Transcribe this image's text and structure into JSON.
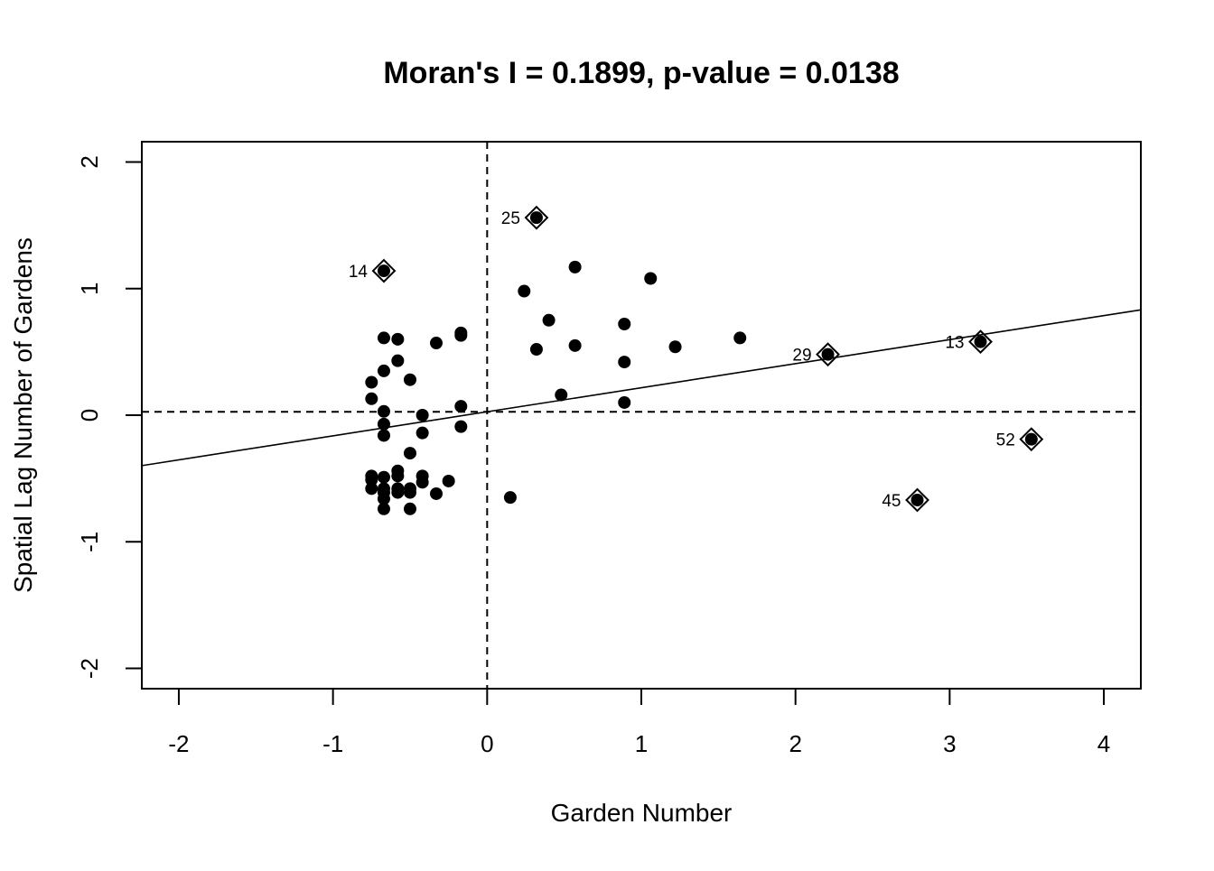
{
  "chart_data": {
    "type": "scatter",
    "title": "Moran's I = 0.1899, p-value = 0.0138",
    "xlabel": "Garden Number",
    "ylabel": "Spatial Lag Number of Gardens",
    "xlim": [
      -2.24,
      4.24
    ],
    "ylim": [
      -2.16,
      2.16
    ],
    "xticks": [
      -2,
      -1,
      0,
      1,
      2,
      3,
      4
    ],
    "yticks": [
      -2,
      -1,
      0,
      1,
      2
    ],
    "mean_x": 0,
    "mean_y": 0.027,
    "regression": {
      "intercept": 0.027,
      "slope": 0.1899
    },
    "grid": false,
    "legend": "none",
    "points": [
      {
        "x": -0.75,
        "y": 0.26
      },
      {
        "x": -0.75,
        "y": 0.13
      },
      {
        "x": -0.67,
        "y": 0.61
      },
      {
        "x": -0.58,
        "y": 0.6
      },
      {
        "x": -0.67,
        "y": 0.35
      },
      {
        "x": -0.58,
        "y": 0.43
      },
      {
        "x": -0.5,
        "y": 0.28
      },
      {
        "x": -0.33,
        "y": 0.57
      },
      {
        "x": -0.17,
        "y": 0.63
      },
      {
        "x": -0.17,
        "y": 0.65
      },
      {
        "x": -0.67,
        "y": 0.03
      },
      {
        "x": -0.67,
        "y": -0.07
      },
      {
        "x": -0.67,
        "y": -0.16
      },
      {
        "x": -0.42,
        "y": 0.0
      },
      {
        "x": -0.42,
        "y": -0.14
      },
      {
        "x": -0.17,
        "y": 0.07
      },
      {
        "x": -0.17,
        "y": -0.09
      },
      {
        "x": -0.5,
        "y": -0.3
      },
      {
        "x": -0.75,
        "y": -0.48
      },
      {
        "x": -0.75,
        "y": -0.51
      },
      {
        "x": -0.75,
        "y": -0.58
      },
      {
        "x": -0.67,
        "y": -0.49
      },
      {
        "x": -0.67,
        "y": -0.58
      },
      {
        "x": -0.67,
        "y": -0.61
      },
      {
        "x": -0.67,
        "y": -0.66
      },
      {
        "x": -0.67,
        "y": -0.74
      },
      {
        "x": -0.58,
        "y": -0.44
      },
      {
        "x": -0.58,
        "y": -0.48
      },
      {
        "x": -0.58,
        "y": -0.58
      },
      {
        "x": -0.58,
        "y": -0.61
      },
      {
        "x": -0.5,
        "y": -0.58
      },
      {
        "x": -0.5,
        "y": -0.61
      },
      {
        "x": -0.5,
        "y": -0.74
      },
      {
        "x": -0.42,
        "y": -0.48
      },
      {
        "x": -0.42,
        "y": -0.53
      },
      {
        "x": -0.33,
        "y": -0.62
      },
      {
        "x": -0.25,
        "y": -0.52
      },
      {
        "x": 0.15,
        "y": -0.65
      },
      {
        "x": 0.24,
        "y": 0.98
      },
      {
        "x": 0.32,
        "y": 0.52
      },
      {
        "x": 0.4,
        "y": 0.75
      },
      {
        "x": 0.48,
        "y": 0.16
      },
      {
        "x": 0.57,
        "y": 1.17
      },
      {
        "x": 0.57,
        "y": 0.55
      },
      {
        "x": 0.89,
        "y": 0.72
      },
      {
        "x": 0.89,
        "y": 0.42
      },
      {
        "x": 0.89,
        "y": 0.1
      },
      {
        "x": 1.06,
        "y": 1.08
      },
      {
        "x": 1.22,
        "y": 0.54
      },
      {
        "x": 1.64,
        "y": 0.61
      }
    ],
    "influential_points": [
      {
        "label": "14",
        "x": -0.67,
        "y": 1.14
      },
      {
        "label": "25",
        "x": 0.32,
        "y": 1.56
      },
      {
        "label": "29",
        "x": 2.21,
        "y": 0.48
      },
      {
        "label": "13",
        "x": 3.2,
        "y": 0.58
      },
      {
        "label": "52",
        "x": 3.53,
        "y": -0.19
      },
      {
        "label": "45",
        "x": 2.79,
        "y": -0.67
      }
    ]
  }
}
